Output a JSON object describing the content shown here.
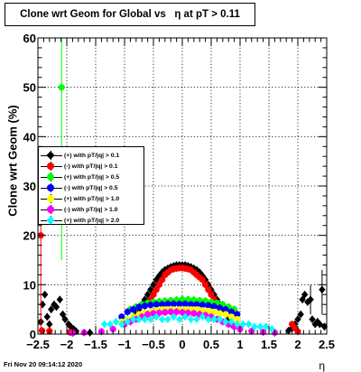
{
  "chart_data": {
    "type": "scatter",
    "title": "Clone wrt Geom for Global vs   η at pT > 0.11",
    "xlabel": "η",
    "ylabel": "Clone wrt Geom (%)",
    "xlim": [
      -2.5,
      2.5
    ],
    "ylim": [
      0,
      60
    ],
    "x_ticks": [
      "−2.5",
      "−2",
      "−1.5",
      "−1",
      "−0.5",
      "0",
      "0.5",
      "1",
      "1.5",
      "2",
      "2.5"
    ],
    "y_ticks": [
      "0",
      "10",
      "20",
      "30",
      "40",
      "50",
      "60"
    ],
    "grid": true,
    "legend_position": "middle-left",
    "timestamp": "Fri Nov 20 09:14:12 2020",
    "series": [
      {
        "name": "(+) with pT/|q| > 0.1",
        "color": "#000000",
        "marker": "diamond",
        "points": [
          [
            -2.45,
            2.5
          ],
          [
            -2.42,
            6
          ],
          [
            -2.38,
            8
          ],
          [
            -2.34,
            3.5
          ],
          [
            -2.3,
            2
          ],
          [
            -2.27,
            5
          ],
          [
            -2.22,
            6
          ],
          [
            -2.18,
            5.5
          ],
          [
            -2.12,
            7
          ],
          [
            -2.07,
            4
          ],
          [
            -2.03,
            3
          ],
          [
            -1.97,
            2
          ],
          [
            -1.93,
            1.5
          ],
          [
            -1.88,
            1
          ],
          [
            -1.84,
            0.6
          ],
          [
            -1.6,
            0.3
          ],
          [
            -0.85,
            3
          ],
          [
            -0.8,
            4
          ],
          [
            -0.75,
            5
          ],
          [
            -0.7,
            6
          ],
          [
            -0.65,
            7
          ],
          [
            -0.6,
            8
          ],
          [
            -0.55,
            9
          ],
          [
            -0.5,
            10
          ],
          [
            -0.45,
            11
          ],
          [
            -0.4,
            11.8
          ],
          [
            -0.35,
            12.5
          ],
          [
            -0.3,
            13
          ],
          [
            -0.25,
            13.3
          ],
          [
            -0.2,
            13.6
          ],
          [
            -0.15,
            13.8
          ],
          [
            -0.1,
            14
          ],
          [
            -0.05,
            14
          ],
          [
            0.0,
            14
          ],
          [
            0.05,
            14
          ],
          [
            0.1,
            13.8
          ],
          [
            0.15,
            13.6
          ],
          [
            0.2,
            13.3
          ],
          [
            0.25,
            13
          ],
          [
            0.3,
            12.5
          ],
          [
            0.35,
            11.8
          ],
          [
            0.4,
            11
          ],
          [
            0.45,
            10
          ],
          [
            0.5,
            9
          ],
          [
            0.55,
            8
          ],
          [
            0.6,
            7
          ],
          [
            0.65,
            6
          ],
          [
            0.7,
            5
          ],
          [
            0.75,
            4
          ],
          [
            0.8,
            3
          ],
          [
            0.85,
            2
          ],
          [
            1.6,
            0.3
          ],
          [
            1.84,
            0.7
          ],
          [
            1.9,
            1.2
          ],
          [
            1.95,
            2
          ],
          [
            2.0,
            3
          ],
          [
            2.05,
            4
          ],
          [
            2.08,
            7
          ],
          [
            2.12,
            8
          ],
          [
            2.17,
            6.5
          ],
          [
            2.22,
            7
          ],
          [
            2.25,
            3
          ],
          [
            2.3,
            2
          ],
          [
            2.34,
            2.5
          ],
          [
            2.38,
            2
          ],
          [
            2.42,
            9
          ],
          [
            2.46,
            1.5
          ]
        ]
      },
      {
        "name": "(-) with pT/|q| > 0.1",
        "color": "#ff0000",
        "marker": "circle",
        "points": [
          [
            -2.45,
            20
          ],
          [
            -2.43,
            0.7
          ],
          [
            -2.3,
            0.6
          ],
          [
            -1.95,
            0.4
          ],
          [
            -1.9,
            0.3
          ],
          [
            -0.55,
            7
          ],
          [
            -0.5,
            8
          ],
          [
            -0.45,
            9
          ],
          [
            -0.4,
            10
          ],
          [
            -0.35,
            11
          ],
          [
            -0.3,
            12
          ],
          [
            -0.25,
            12.5
          ],
          [
            -0.2,
            13
          ],
          [
            -0.15,
            13.2
          ],
          [
            -0.1,
            13.3
          ],
          [
            -0.05,
            13.4
          ],
          [
            0.0,
            13.4
          ],
          [
            0.05,
            13.3
          ],
          [
            0.1,
            13.2
          ],
          [
            0.15,
            13
          ],
          [
            0.2,
            12.5
          ],
          [
            0.25,
            12
          ],
          [
            0.3,
            11.5
          ],
          [
            0.35,
            11
          ],
          [
            0.4,
            10
          ],
          [
            0.45,
            9
          ],
          [
            0.5,
            8
          ],
          [
            0.55,
            7
          ],
          [
            1.9,
            2
          ],
          [
            1.95,
            1.2
          ],
          [
            2.0,
            0.5
          ]
        ]
      },
      {
        "name": "(+) with pT/|q| > 0.5",
        "color": "#00ff00",
        "marker": "circle",
        "points": [
          [
            -2.09,
            50
          ],
          [
            -0.9,
            5
          ],
          [
            -0.8,
            5.5
          ],
          [
            -0.7,
            6
          ],
          [
            -0.6,
            6.3
          ],
          [
            -0.5,
            6.5
          ],
          [
            -0.4,
            6.6
          ],
          [
            -0.3,
            6.7
          ],
          [
            -0.2,
            6.8
          ],
          [
            -0.1,
            6.9
          ],
          [
            0.0,
            7
          ],
          [
            0.1,
            7
          ],
          [
            0.2,
            6.9
          ],
          [
            0.3,
            6.8
          ],
          [
            0.4,
            6.7
          ],
          [
            0.5,
            6.5
          ],
          [
            0.6,
            6.3
          ],
          [
            0.7,
            6
          ],
          [
            0.8,
            5.5
          ],
          [
            0.9,
            5
          ]
        ]
      },
      {
        "name": "(-) with pT/|q| > 0.5",
        "color": "#0000ff",
        "marker": "circle",
        "points": [
          [
            -1.05,
            3.5
          ],
          [
            -0.95,
            4.5
          ],
          [
            -0.85,
            5
          ],
          [
            -0.75,
            5.5
          ],
          [
            -0.65,
            5.7
          ],
          [
            -0.55,
            5.9
          ],
          [
            -0.45,
            6
          ],
          [
            -0.35,
            6
          ],
          [
            -0.25,
            6.1
          ],
          [
            -0.15,
            6.1
          ],
          [
            -0.05,
            6.1
          ],
          [
            0.05,
            6.1
          ],
          [
            0.15,
            6
          ],
          [
            0.25,
            6
          ],
          [
            0.35,
            5.9
          ],
          [
            0.45,
            5.8
          ],
          [
            0.55,
            5.6
          ],
          [
            0.65,
            5.3
          ],
          [
            0.75,
            5
          ],
          [
            0.85,
            4.5
          ],
          [
            0.95,
            4
          ]
        ]
      },
      {
        "name": "(+) with pT/|q| > 1.0",
        "color": "#ffff00",
        "marker": "circle",
        "points": [
          [
            -1.05,
            2.5
          ],
          [
            -0.95,
            3
          ],
          [
            -0.85,
            3.5
          ],
          [
            -0.75,
            4
          ],
          [
            -0.65,
            4.3
          ],
          [
            -0.55,
            4.5
          ],
          [
            -0.45,
            4.8
          ],
          [
            -0.35,
            5
          ],
          [
            -0.25,
            5
          ],
          [
            -0.15,
            5
          ],
          [
            -0.05,
            5
          ],
          [
            0.05,
            5
          ],
          [
            0.15,
            5
          ],
          [
            0.25,
            5
          ],
          [
            0.35,
            4.8
          ],
          [
            0.45,
            4.7
          ],
          [
            0.55,
            4.5
          ],
          [
            0.65,
            4.2
          ],
          [
            0.75,
            4
          ],
          [
            0.85,
            3.5
          ],
          [
            0.95,
            3
          ]
        ]
      },
      {
        "name": "(-) with pT/|q| > 1.0",
        "color": "#ff00ff",
        "marker": "circle",
        "points": [
          [
            -1.9,
            0.2
          ],
          [
            -1.7,
            0.3
          ],
          [
            -1.4,
            0.5
          ],
          [
            -1.2,
            1
          ],
          [
            -1.0,
            2
          ],
          [
            -0.9,
            2.5
          ],
          [
            -0.8,
            3
          ],
          [
            -0.7,
            3.5
          ],
          [
            -0.6,
            4
          ],
          [
            -0.5,
            4.2
          ],
          [
            -0.4,
            4.3
          ],
          [
            -0.3,
            4.4
          ],
          [
            -0.2,
            4.5
          ],
          [
            -0.1,
            4.5
          ],
          [
            0.0,
            4.4
          ],
          [
            0.1,
            4.3
          ],
          [
            0.2,
            4.2
          ],
          [
            0.3,
            4
          ],
          [
            0.4,
            3.8
          ],
          [
            0.5,
            3.5
          ],
          [
            0.6,
            3
          ],
          [
            0.7,
            2.5
          ],
          [
            0.8,
            2
          ],
          [
            0.9,
            1.5
          ],
          [
            1.0,
            1
          ],
          [
            1.2,
            0.6
          ],
          [
            1.4,
            0.4
          ],
          [
            1.6,
            0.3
          ]
        ]
      },
      {
        "name": "(+) with pT/|q| > 2.0",
        "color": "#00ffff",
        "marker": "diamond",
        "points": [
          [
            -1.35,
            2
          ],
          [
            -1.25,
            2
          ],
          [
            -1.15,
            2.5
          ],
          [
            -1.05,
            2
          ],
          [
            -0.95,
            2.5
          ],
          [
            -0.85,
            3
          ],
          [
            -0.75,
            3
          ],
          [
            -0.65,
            3
          ],
          [
            -0.55,
            3
          ],
          [
            -0.45,
            3.5
          ],
          [
            -0.35,
            3
          ],
          [
            -0.25,
            3
          ],
          [
            -0.15,
            3.5
          ],
          [
            -0.05,
            3
          ],
          [
            0.05,
            3.5
          ],
          [
            0.15,
            3
          ],
          [
            0.25,
            3
          ],
          [
            0.35,
            3.5
          ],
          [
            0.45,
            3
          ],
          [
            0.55,
            3
          ],
          [
            0.65,
            3
          ],
          [
            0.75,
            2.5
          ],
          [
            0.85,
            2.5
          ],
          [
            0.95,
            2
          ],
          [
            1.05,
            2
          ],
          [
            1.15,
            2
          ],
          [
            1.25,
            1.5
          ],
          [
            1.35,
            1.5
          ],
          [
            1.45,
            1.5
          ],
          [
            1.55,
            1
          ]
        ]
      }
    ]
  }
}
